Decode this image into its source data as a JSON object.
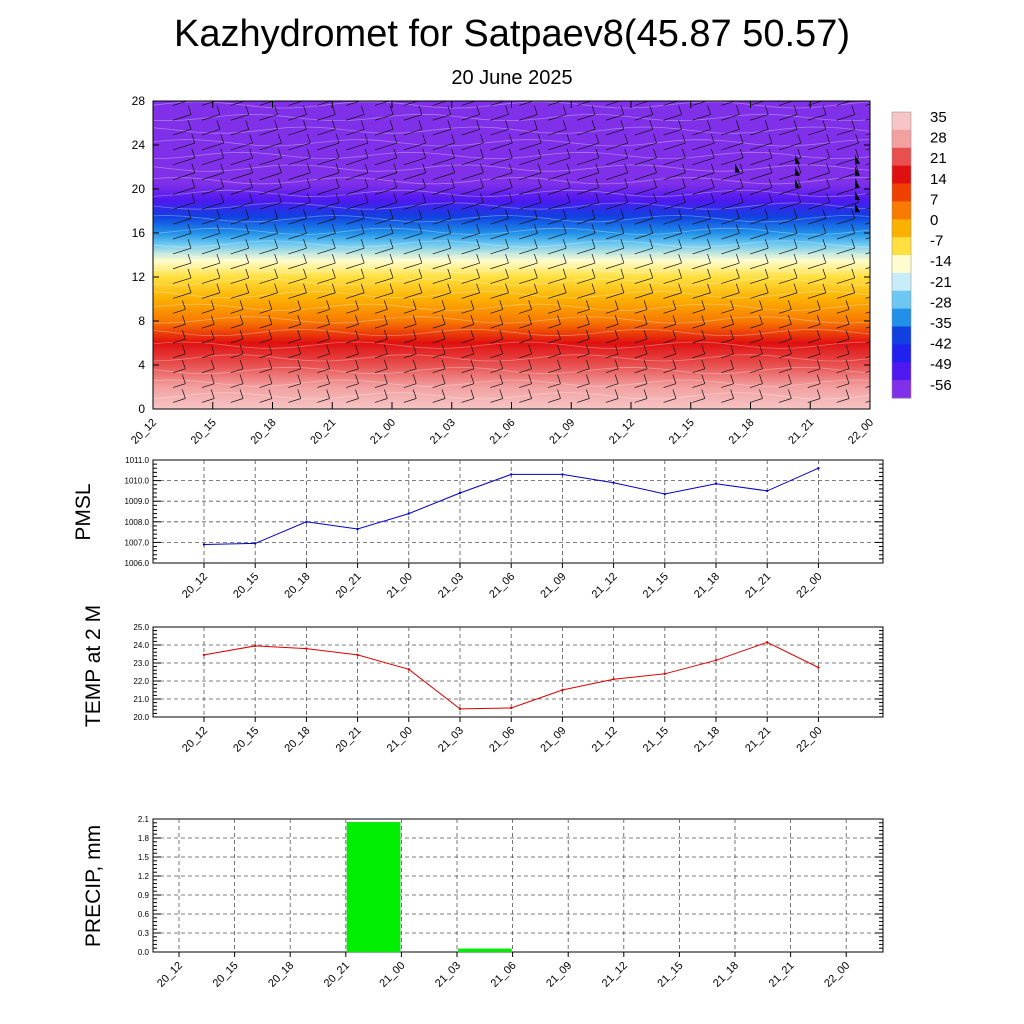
{
  "header": {
    "title": "Kazhydromet for Satpaev8(45.87 50.57)",
    "date": "20 June 2025"
  },
  "colors": {
    "pmsl_line": "#0000cc",
    "temp_line": "#dd0000",
    "precip_bar": "#00ee00",
    "grid": "#555555"
  },
  "chart_data": [
    {
      "type": "heatmap",
      "id": "cross-section",
      "x": [
        "20_12",
        "20_15",
        "20_18",
        "20_21",
        "21_00",
        "21_03",
        "21_06",
        "21_09",
        "21_12",
        "21_15",
        "21_18",
        "21_21",
        "22_00"
      ],
      "y_ticks": [
        0,
        4,
        8,
        12,
        16,
        20,
        24,
        28
      ],
      "ylim": [
        0,
        28
      ],
      "colorbar_labels": [
        "35",
        "28",
        "21",
        "14",
        "7",
        "0",
        "-7",
        "-14",
        "-21",
        "-28",
        "-35",
        "-42",
        "-49",
        "-56"
      ],
      "colorbar_colors": [
        "#f7c5c5",
        "#f2a0a0",
        "#e85050",
        "#e01010",
        "#f04000",
        "#f87a00",
        "#fcb000",
        "#ffe040",
        "#fffdd0",
        "#c8ecf8",
        "#6cc8f0",
        "#2090e8",
        "#1040e0",
        "#2020f0",
        "#5018f0",
        "#8030e8"
      ],
      "temperature_profile": [
        {
          "z": 0,
          "t": 33
        },
        {
          "z": 2,
          "t": 28
        },
        {
          "z": 4,
          "t": 22
        },
        {
          "z": 6,
          "t": 14
        },
        {
          "z": 8,
          "t": 6
        },
        {
          "z": 10,
          "t": -2
        },
        {
          "z": 12,
          "t": -9
        },
        {
          "z": 13.5,
          "t": -14
        },
        {
          "z": 15,
          "t": -22
        },
        {
          "z": 16,
          "t": -28
        },
        {
          "z": 17.5,
          "t": -38
        },
        {
          "z": 19,
          "t": -47
        },
        {
          "z": 20.5,
          "t": -56
        },
        {
          "z": 22,
          "t": -62
        },
        {
          "z": 24,
          "t": -60
        },
        {
          "z": 26,
          "t": -57
        },
        {
          "z": 28,
          "t": -55
        }
      ]
    },
    {
      "type": "line",
      "id": "pmsl",
      "ylabel": "PMSL",
      "categories": [
        "20_12",
        "20_15",
        "20_18",
        "20_21",
        "21_00",
        "21_03",
        "21_06",
        "21_09",
        "21_12",
        "21_15",
        "21_18",
        "21_21",
        "22_00"
      ],
      "values": [
        1006.9,
        1006.95,
        1008.0,
        1007.65,
        1008.4,
        1009.4,
        1010.3,
        1010.3,
        1009.9,
        1009.35,
        1009.85,
        1009.5,
        1010.6
      ],
      "ylim": [
        1006.0,
        1011.0
      ],
      "y_ticks": [
        "1006.0",
        "1007.0",
        "1008.0",
        "1009.0",
        "1010.0",
        "1011.0"
      ],
      "grid": true
    },
    {
      "type": "line",
      "id": "temp",
      "ylabel": "TEMP at 2 M",
      "categories": [
        "20_12",
        "20_15",
        "20_18",
        "20_21",
        "21_00",
        "21_03",
        "21_06",
        "21_09",
        "21_12",
        "21_15",
        "21_18",
        "21_21",
        "22_00"
      ],
      "values": [
        23.45,
        23.95,
        23.8,
        23.45,
        22.65,
        20.45,
        20.5,
        21.5,
        22.1,
        22.4,
        23.15,
        24.15,
        22.75
      ],
      "ylim": [
        20.0,
        25.0
      ],
      "y_ticks": [
        "20.0",
        "21.0",
        "22.0",
        "23.0",
        "24.0",
        "25.0"
      ],
      "grid": true
    },
    {
      "type": "bar",
      "id": "precip",
      "ylabel": "PRECIP, mm",
      "categories": [
        "20_12",
        "20_15",
        "20_18",
        "20_21",
        "21_00",
        "21_03",
        "21_06",
        "21_09",
        "21_12",
        "21_15",
        "21_18",
        "21_21",
        "22_00"
      ],
      "values": [
        0,
        0,
        0,
        0,
        2.05,
        0,
        0.05,
        0,
        0,
        0,
        0,
        0,
        0
      ],
      "ylim": [
        0,
        2.1
      ],
      "y_ticks": [
        "0.0",
        "0.3",
        "0.6",
        "0.9",
        "1.2",
        "1.5",
        "1.8",
        "2.1"
      ],
      "grid": true
    }
  ]
}
